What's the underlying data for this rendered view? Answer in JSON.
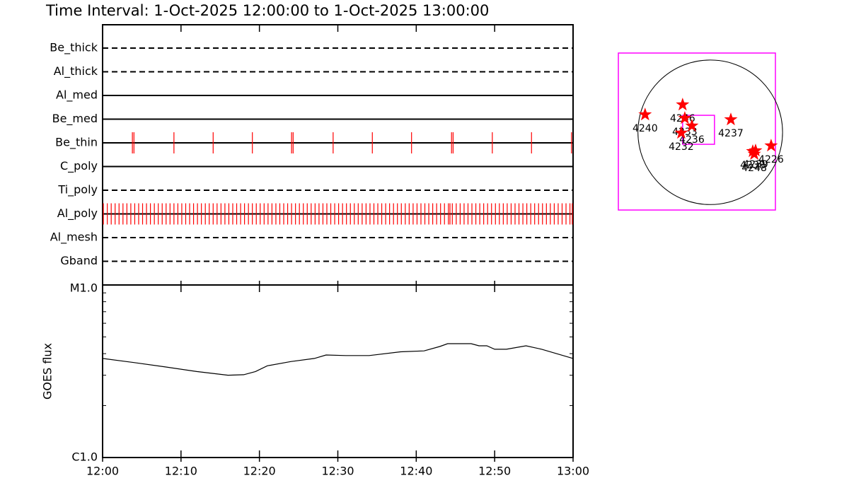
{
  "chart_data": [
    {
      "type": "timeline",
      "title": "Time Interval:  1-Oct-2025 12:00:00 to  1-Oct-2025 13:00:00",
      "color": "#ff0000",
      "xlim": [
        0,
        60
      ],
      "xticks": [
        0,
        10,
        20,
        30,
        40,
        50,
        60
      ],
      "rows": [
        {
          "name": "Be_thick",
          "style": "dashed",
          "events": []
        },
        {
          "name": "Al_thick",
          "style": "dashed",
          "events": []
        },
        {
          "name": "Al_med",
          "style": "solid",
          "events": []
        },
        {
          "name": "Be_med",
          "style": "solid",
          "events": []
        },
        {
          "name": "Be_thin",
          "style": "solid",
          "events": [
            3.8,
            4.0,
            9.1,
            14.1,
            19.1,
            24.1,
            24.3,
            29.4,
            34.4,
            39.4,
            44.5,
            44.7,
            49.7,
            54.7,
            59.8
          ]
        },
        {
          "name": "C_poly",
          "style": "solid",
          "events": []
        },
        {
          "name": "Ti_poly",
          "style": "dashed",
          "events": []
        },
        {
          "name": "Al_poly",
          "style": "solid",
          "events": [
            0.1,
            0.6,
            1.1,
            1.6,
            2.1,
            2.6,
            3.1,
            3.6,
            4.1,
            4.6,
            5.1,
            5.6,
            6.1,
            6.6,
            7.1,
            7.6,
            8.1,
            8.6,
            9.1,
            9.6,
            10.1,
            10.6,
            11.1,
            11.6,
            12.1,
            12.6,
            13.1,
            13.6,
            14.1,
            14.6,
            15.1,
            15.6,
            16.1,
            16.6,
            17.1,
            17.6,
            18.1,
            18.6,
            19.1,
            19.6,
            20.1,
            20.6,
            21.1,
            21.6,
            22.1,
            22.6,
            23.1,
            23.6,
            24.1,
            24.6,
            25.1,
            25.6,
            26.1,
            26.6,
            27.1,
            27.6,
            28.1,
            28.6,
            29.1,
            29.6,
            30.1,
            30.6,
            31.1,
            31.6,
            32.1,
            32.6,
            33.1,
            33.6,
            34.1,
            34.6,
            35.1,
            35.6,
            36.1,
            36.6,
            37.1,
            37.6,
            38.1,
            38.6,
            39.1,
            39.6,
            40.1,
            40.6,
            41.1,
            41.6,
            42.1,
            42.6,
            43.1,
            43.6,
            44.1,
            44.3,
            44.6,
            45.1,
            45.6,
            46.1,
            46.6,
            47.1,
            47.6,
            48.1,
            48.6,
            49.1,
            49.6,
            50.1,
            50.6,
            51.1,
            51.6,
            52.1,
            52.6,
            53.1,
            53.6,
            54.1,
            54.6,
            55.1,
            55.6,
            56.1,
            56.6,
            57.1,
            57.6,
            58.1,
            58.6,
            59.1,
            59.6,
            59.9
          ]
        },
        {
          "name": "Al_mesh",
          "style": "dashed",
          "events": []
        },
        {
          "name": "Gband",
          "style": "dashed",
          "events": []
        }
      ]
    },
    {
      "type": "line",
      "ylabel": "GOES flux",
      "color": "#000000",
      "log_y": true,
      "xlim": [
        0,
        60
      ],
      "xticks": [
        {
          "value": 0,
          "label": "12:00"
        },
        {
          "value": 10,
          "label": "12:10"
        },
        {
          "value": 20,
          "label": "12:20"
        },
        {
          "value": 30,
          "label": "12:30"
        },
        {
          "value": 40,
          "label": "12:40"
        },
        {
          "value": 50,
          "label": "12:50"
        },
        {
          "value": 60,
          "label": "13:00"
        }
      ],
      "ylim": [
        1e-06,
        1e-05
      ],
      "yticks": [
        {
          "value": 1e-06,
          "label": "C1.0"
        },
        {
          "value": 1e-05,
          "label": "M1.0"
        }
      ],
      "yminorticks": [
        2e-06,
        3e-06,
        4e-06,
        5e-06,
        6e-06,
        7e-06,
        8e-06,
        9e-06
      ],
      "x": [
        0,
        4,
        8,
        12,
        16,
        18,
        19.5,
        21,
        24,
        27,
        28.5,
        31,
        34,
        38,
        41,
        43,
        44,
        47,
        48,
        49,
        50,
        51.5,
        54,
        56,
        60
      ],
      "values": [
        3.75e-06,
        3.55e-06,
        3.35e-06,
        3.15e-06,
        3e-06,
        3.02e-06,
        3.15e-06,
        3.4e-06,
        3.6e-06,
        3.75e-06,
        3.93e-06,
        3.9e-06,
        3.9e-06,
        4.1e-06,
        4.15e-06,
        4.4e-06,
        4.57e-06,
        4.57e-06,
        4.44e-06,
        4.44e-06,
        4.24e-06,
        4.24e-06,
        4.44e-06,
        4.24e-06,
        3.75e-06
      ]
    },
    {
      "type": "map",
      "frame_color": "#ff00ff",
      "marker_color": "#ff0000",
      "xlim": [
        -1220,
        865
      ],
      "ylim": [
        -1035,
        1055
      ],
      "disk_radius": 960,
      "fov": {
        "x": [
          -367,
          56
        ],
        "y": [
          -160,
          226
        ]
      },
      "x": [
        -865,
        -367,
        -338,
        -244,
        -385,
        273,
        564,
        602,
        584,
        808
      ],
      "y": [
        235,
        367,
        188,
        85,
        -9,
        169,
        -254,
        -244,
        -290,
        -179
      ],
      "labels": [
        "4240",
        "4246",
        "4233",
        "4236",
        "4232",
        "4237",
        "4238",
        "4239",
        "4248",
        "4226"
      ]
    }
  ]
}
